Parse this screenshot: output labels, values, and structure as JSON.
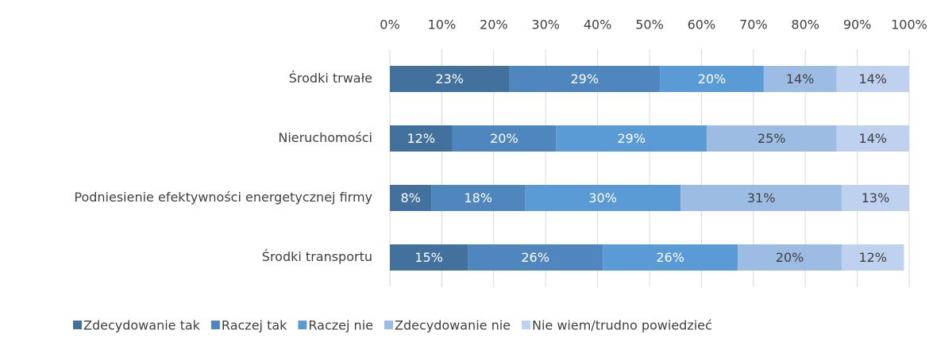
{
  "chart_data": {
    "type": "stacked-bar-horizontal",
    "categories": [
      "Środki trwałe",
      "Nieruchomości",
      "Podniesienie efektywności energetycznej firmy",
      "Środki transportu"
    ],
    "series": [
      {
        "name": "Zdecydowanie tak",
        "color": "#41719c",
        "values": [
          23,
          12,
          8,
          15
        ],
        "value_labels": [
          "23%",
          "12%",
          "8%",
          "15%"
        ]
      },
      {
        "name": "Raczej tak",
        "color": "#4f86bd",
        "values": [
          29,
          20,
          18,
          26
        ],
        "value_labels": [
          "29%",
          "20%",
          "18%",
          "26%"
        ]
      },
      {
        "name": "Raczej nie",
        "color": "#5b9bd5",
        "values": [
          20,
          29,
          30,
          26
        ],
        "value_labels": [
          "20%",
          "29%",
          "30%",
          "26%"
        ]
      },
      {
        "name": "Zdecydowanie nie",
        "color": "#9dbce3",
        "values": [
          14,
          25,
          31,
          20
        ],
        "value_labels": [
          "14%",
          "25%",
          "31%",
          "20%"
        ]
      },
      {
        "name": "Nie wiem/trudno powiedzieć",
        "color": "#bed1ef",
        "values": [
          14,
          14,
          13,
          12
        ],
        "value_labels": [
          "14%",
          "14%",
          "13%",
          "12%"
        ]
      }
    ],
    "xlim": [
      0,
      100
    ],
    "xticks": [
      {
        "value": 0,
        "label": "0%"
      },
      {
        "value": 10,
        "label": "10%"
      },
      {
        "value": 20,
        "label": "20%"
      },
      {
        "value": 30,
        "label": "30%"
      },
      {
        "value": 40,
        "label": "40%"
      },
      {
        "value": 50,
        "label": "50%"
      },
      {
        "value": 60,
        "label": "60%"
      },
      {
        "value": 70,
        "label": "70%"
      },
      {
        "value": 80,
        "label": "80%"
      },
      {
        "value": 90,
        "label": "90%"
      },
      {
        "value": 100,
        "label": "100%"
      }
    ],
    "grid": true,
    "legend": "bottom"
  }
}
